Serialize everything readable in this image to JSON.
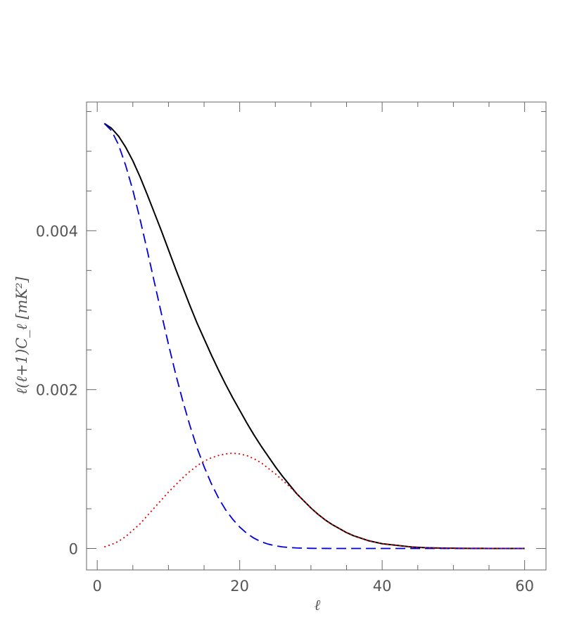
{
  "chart_data": {
    "type": "line",
    "xlabel": "ℓ",
    "ylabel": "ℓ(ℓ+1)C_ℓ [mK²]",
    "xlim": [
      -1.5,
      63
    ],
    "ylim": [
      -0.00027,
      0.00562
    ],
    "x_ticks": [
      0,
      20,
      40,
      60
    ],
    "x_tick_labels": [
      "0",
      "20",
      "40",
      "60"
    ],
    "y_ticks": [
      0,
      0.002,
      0.004
    ],
    "y_tick_labels": [
      "0",
      "0.002",
      "0.004"
    ],
    "grid": false,
    "series": [
      {
        "style": "solid",
        "color": "#000000",
        "x": [
          1,
          2,
          3,
          4,
          5,
          6,
          7,
          8,
          9,
          10,
          11,
          12,
          13,
          14,
          15,
          16,
          17,
          18,
          19,
          20,
          21,
          22,
          23,
          24,
          25,
          26,
          27,
          28,
          29,
          30,
          31,
          32,
          33,
          34,
          35,
          36,
          37,
          38,
          39,
          40,
          41,
          42,
          43,
          44,
          45,
          46,
          47,
          48,
          49,
          50,
          51,
          52,
          53,
          54,
          55,
          56,
          57,
          58,
          59,
          60
        ],
        "values": [
          0.00535,
          0.00529,
          0.00519,
          0.00505,
          0.00488,
          0.00468,
          0.00446,
          0.00423,
          0.004,
          0.00376,
          0.00352,
          0.00329,
          0.00306,
          0.00284,
          0.00264,
          0.00244,
          0.00225,
          0.00207,
          0.0019,
          0.00174,
          0.00158,
          0.00143,
          0.00129,
          0.00116,
          0.00103,
          0.00091,
          0.0008,
          0.00069,
          0.0006,
          0.00051,
          0.00043,
          0.00036,
          0.0003,
          0.00025,
          0.0002,
          0.00016,
          0.00013,
          0.0001,
          8e-05,
          6e-05,
          5e-05,
          4e-05,
          3e-05,
          2e-05,
          1.5e-05,
          1e-05,
          8e-06,
          6e-06,
          4e-06,
          3e-06,
          2e-06,
          1.5e-06,
          1e-06,
          8e-07,
          6e-07,
          4e-07,
          3e-07,
          2e-07,
          1e-07,
          0
        ]
      },
      {
        "style": "dashed",
        "color": "#0000dd",
        "x": [
          1,
          2,
          3,
          4,
          5,
          6,
          7,
          8,
          9,
          10,
          11,
          12,
          13,
          14,
          15,
          16,
          17,
          18,
          19,
          20,
          21,
          22,
          23,
          24,
          25,
          26,
          27,
          28,
          29,
          30,
          32,
          34,
          36,
          40,
          45,
          50,
          55,
          60
        ],
        "values": [
          0.00535,
          0.00526,
          0.00508,
          0.00482,
          0.00451,
          0.00415,
          0.00376,
          0.00336,
          0.00296,
          0.00257,
          0.0022,
          0.00186,
          0.00155,
          0.00127,
          0.00103,
          0.00082,
          0.00064,
          0.00049,
          0.00037,
          0.00027,
          0.00019,
          0.00013,
          8.5e-05,
          5.5e-05,
          3.4e-05,
          2e-05,
          1.2e-05,
          7e-06,
          4e-06,
          2e-06,
          6e-07,
          2e-07,
          0,
          0,
          0,
          0,
          0,
          0
        ]
      },
      {
        "style": "dotted",
        "color": "#dd0000",
        "x": [
          1,
          2,
          3,
          4,
          5,
          6,
          7,
          8,
          9,
          10,
          11,
          12,
          13,
          14,
          15,
          16,
          17,
          18,
          19,
          20,
          21,
          22,
          23,
          24,
          25,
          26,
          27,
          28,
          29,
          30,
          31,
          32,
          33,
          34,
          35,
          36,
          37,
          38,
          39,
          40,
          41,
          42,
          43,
          44,
          45,
          46,
          47,
          48,
          49,
          50,
          52,
          54,
          56,
          58,
          60
        ],
        "values": [
          2e-05,
          5e-05,
          9e-05,
          0.00015,
          0.00023,
          0.00031,
          0.00041,
          0.00051,
          0.00061,
          0.00071,
          0.0008,
          0.00089,
          0.00097,
          0.00104,
          0.0011,
          0.00114,
          0.00117,
          0.00119,
          0.0012,
          0.00119,
          0.00117,
          0.00113,
          0.00108,
          0.00101,
          0.00094,
          0.00086,
          0.00078,
          0.00069,
          0.0006,
          0.00051,
          0.00043,
          0.00036,
          0.0003,
          0.00025,
          0.0002,
          0.00016,
          0.00013,
          0.0001,
          8e-05,
          6e-05,
          5e-05,
          4e-05,
          3e-05,
          2e-05,
          1.5e-05,
          1e-05,
          8e-06,
          6e-06,
          4e-06,
          3e-06,
          1.5e-06,
          8e-07,
          4e-07,
          2e-07,
          0
        ]
      }
    ]
  }
}
